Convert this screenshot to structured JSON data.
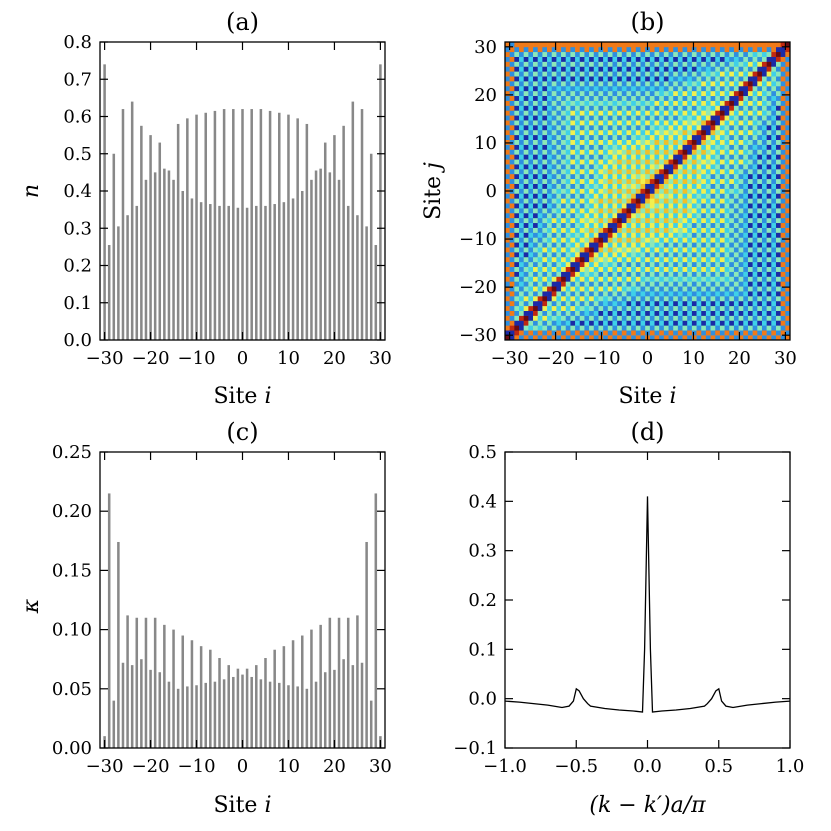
{
  "chart_data": [
    {
      "panel": "a",
      "type": "bar",
      "title": "(a)",
      "xlabel": "Site",
      "xlabel_var": "i",
      "ylabel": "n",
      "xlim": [
        -31,
        31
      ],
      "ylim": [
        0,
        0.8
      ],
      "xticks": [
        -30,
        -20,
        -10,
        0,
        10,
        20,
        30
      ],
      "xtick_labels": [
        "−30",
        "−20",
        "−10",
        "0",
        "10",
        "20",
        "30"
      ],
      "yticks": [
        0,
        0.1,
        0.2,
        0.3,
        0.4,
        0.5,
        0.6,
        0.7,
        0.8
      ],
      "ytick_labels": [
        "0.0",
        "0.1",
        "0.2",
        "0.3",
        "0.4",
        "0.5",
        "0.6",
        "0.7",
        "0.8"
      ],
      "color": "#888888",
      "x": [
        -30,
        -29,
        -28,
        -27,
        -26,
        -25,
        -24,
        -23,
        -22,
        -21,
        -20,
        -19,
        -18,
        -17,
        -16,
        -15,
        -14,
        -13,
        -12,
        -11,
        -10,
        -9,
        -8,
        -7,
        -6,
        -5,
        -4,
        -3,
        -2,
        -1,
        0,
        1,
        2,
        3,
        4,
        5,
        6,
        7,
        8,
        9,
        10,
        11,
        12,
        13,
        14,
        15,
        16,
        17,
        18,
        19,
        20,
        21,
        22,
        23,
        24,
        25,
        26,
        27,
        28,
        29,
        30
      ],
      "values": [
        0.74,
        0.255,
        0.5,
        0.305,
        0.62,
        0.335,
        0.64,
        0.36,
        0.575,
        0.43,
        0.55,
        0.45,
        0.53,
        0.46,
        0.455,
        0.43,
        0.58,
        0.4,
        0.595,
        0.38,
        0.605,
        0.37,
        0.61,
        0.365,
        0.615,
        0.36,
        0.62,
        0.36,
        0.62,
        0.355,
        0.62,
        0.355,
        0.62,
        0.36,
        0.62,
        0.36,
        0.615,
        0.365,
        0.61,
        0.37,
        0.605,
        0.38,
        0.595,
        0.4,
        0.58,
        0.43,
        0.455,
        0.46,
        0.53,
        0.45,
        0.55,
        0.43,
        0.575,
        0.36,
        0.64,
        0.335,
        0.62,
        0.305,
        0.5,
        0.255,
        0.74
      ]
    },
    {
      "panel": "b",
      "type": "heatmap",
      "title": "(b)",
      "xlabel": "Site",
      "xlabel_var": "i",
      "ylabel": "Site",
      "ylabel_var": "j",
      "xlim": [
        -31,
        31
      ],
      "ylim": [
        -31,
        31
      ],
      "xticks": [
        -30,
        -20,
        -10,
        0,
        10,
        20,
        30
      ],
      "xtick_labels": [
        "−30",
        "−20",
        "−10",
        "0",
        "10",
        "20",
        "30"
      ],
      "yticks": [
        -30,
        -20,
        -10,
        0,
        10,
        20,
        30
      ],
      "ytick_labels": [
        "−30",
        "−20",
        "−10",
        "0",
        "10",
        "20",
        "30"
      ],
      "description": "Site-site correlation map with a strong diagonal band (dark red / navy) on a checkerboard of yellow, orange and cyan",
      "palette": [
        "#1b2aa6",
        "#2e8fe0",
        "#3fd0e8",
        "#8ce8b8",
        "#f0f050",
        "#f0c028",
        "#f07a18",
        "#c02810",
        "#6a0a10"
      ]
    },
    {
      "panel": "c",
      "type": "bar",
      "title": "(c)",
      "xlabel": "Site",
      "xlabel_var": "i",
      "ylabel": "κ",
      "xlim": [
        -31,
        31
      ],
      "ylim": [
        0,
        0.25
      ],
      "xticks": [
        -30,
        -20,
        -10,
        0,
        10,
        20,
        30
      ],
      "xtick_labels": [
        "−30",
        "−20",
        "−10",
        "0",
        "10",
        "20",
        "30"
      ],
      "yticks": [
        0,
        0.05,
        0.1,
        0.15,
        0.2,
        0.25
      ],
      "ytick_labels": [
        "0.00",
        "0.05",
        "0.10",
        "0.15",
        "0.20",
        "0.25"
      ],
      "color": "#888888",
      "x": [
        -30,
        -29,
        -28,
        -27,
        -26,
        -25,
        -24,
        -23,
        -22,
        -21,
        -20,
        -19,
        -18,
        -17,
        -16,
        -15,
        -14,
        -13,
        -12,
        -11,
        -10,
        -9,
        -8,
        -7,
        -6,
        -5,
        -4,
        -3,
        -2,
        -1,
        0,
        1,
        2,
        3,
        4,
        5,
        6,
        7,
        8,
        9,
        10,
        11,
        12,
        13,
        14,
        15,
        16,
        17,
        18,
        19,
        20,
        21,
        22,
        23,
        24,
        25,
        26,
        27,
        28,
        29,
        30
      ],
      "values": [
        0.01,
        0.215,
        0.04,
        0.174,
        0.072,
        0.112,
        0.07,
        0.11,
        0.075,
        0.11,
        0.066,
        0.11,
        0.064,
        0.104,
        0.056,
        0.1,
        0.05,
        0.095,
        0.052,
        0.091,
        0.053,
        0.086,
        0.055,
        0.083,
        0.056,
        0.076,
        0.058,
        0.07,
        0.06,
        0.067,
        0.062,
        0.067,
        0.06,
        0.07,
        0.058,
        0.076,
        0.056,
        0.083,
        0.055,
        0.086,
        0.053,
        0.091,
        0.052,
        0.095,
        0.05,
        0.1,
        0.056,
        0.104,
        0.064,
        0.11,
        0.066,
        0.11,
        0.075,
        0.11,
        0.07,
        0.112,
        0.072,
        0.174,
        0.04,
        0.215,
        0.01
      ]
    },
    {
      "panel": "d",
      "type": "line",
      "title": "(d)",
      "xlabel": "(k − k′)a/π",
      "ylabel": "",
      "xlim": [
        -1,
        1
      ],
      "ylim": [
        -0.1,
        0.5
      ],
      "xticks": [
        -1,
        -0.5,
        0,
        0.5,
        1
      ],
      "xtick_labels": [
        "−1.0",
        "−0.5",
        "0.0",
        "0.5",
        "1.0"
      ],
      "yticks": [
        -0.1,
        0,
        0.1,
        0.2,
        0.3,
        0.4,
        0.5
      ],
      "ytick_labels": [
        "−0.1",
        "0.0",
        "0.1",
        "0.2",
        "0.3",
        "0.4",
        "0.5"
      ],
      "color": "#000000",
      "x": [
        -1.0,
        -0.9,
        -0.8,
        -0.7,
        -0.6,
        -0.55,
        -0.52,
        -0.5,
        -0.48,
        -0.45,
        -0.42,
        -0.4,
        -0.3,
        -0.2,
        -0.1,
        -0.035,
        -0.02,
        0.0,
        0.02,
        0.035,
        0.1,
        0.2,
        0.3,
        0.4,
        0.42,
        0.45,
        0.48,
        0.5,
        0.52,
        0.55,
        0.6,
        0.7,
        0.8,
        0.9,
        1.0
      ],
      "y": [
        -0.005,
        -0.007,
        -0.01,
        -0.013,
        -0.018,
        -0.015,
        -0.005,
        0.02,
        0.016,
        0.0,
        -0.01,
        -0.015,
        -0.02,
        -0.023,
        -0.025,
        -0.027,
        0.1,
        0.41,
        0.1,
        -0.027,
        -0.025,
        -0.023,
        -0.02,
        -0.015,
        -0.01,
        0.0,
        0.016,
        0.02,
        -0.005,
        -0.015,
        -0.018,
        -0.013,
        -0.01,
        -0.007,
        -0.005
      ]
    }
  ]
}
